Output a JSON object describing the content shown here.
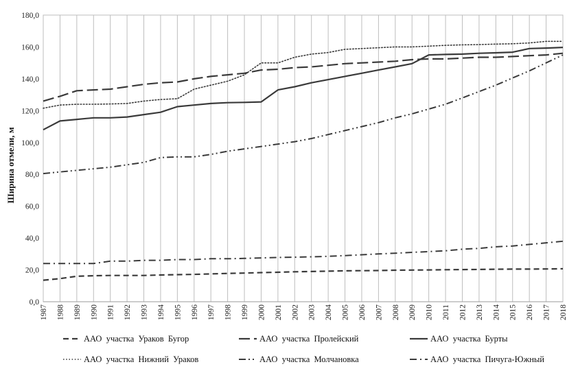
{
  "chart_data": {
    "type": "line",
    "title": "",
    "xlabel": "",
    "ylabel": "Ширина отмели, м",
    "ylim": [
      0,
      180
    ],
    "yticks": [
      "0,0",
      "20,0",
      "40,0",
      "60,0",
      "80,0",
      "100,0",
      "120,0",
      "140,0",
      "160,0",
      "180,0"
    ],
    "grid": "vertical",
    "legend": "bottom",
    "x": [
      "1987",
      "1988",
      "1989",
      "1990",
      "1991",
      "1992",
      "1993",
      "1994",
      "1995",
      "1996",
      "1997",
      "1998",
      "1999",
      "2000",
      "2001",
      "2002",
      "2003",
      "2004",
      "2005",
      "2006",
      "2007",
      "2008",
      "2009",
      "2010",
      "2011",
      "2012",
      "2013",
      "2014",
      "2015",
      "2016",
      "2017",
      "2018"
    ],
    "series": [
      {
        "name": "ААО  участка  Ураков  Бугор",
        "style": "dash",
        "values": [
          13.5,
          14.5,
          16,
          16.3,
          16.5,
          16.5,
          16.5,
          16.8,
          17,
          17.2,
          17.5,
          17.8,
          18,
          18.3,
          18.5,
          18.8,
          19,
          19.2,
          19.4,
          19.5,
          19.6,
          19.8,
          19.9,
          20,
          20.1,
          20.2,
          20.3,
          20.4,
          20.5,
          20.5,
          20.6,
          20.7
        ]
      },
      {
        "name": "ААО  участка  Пролейский",
        "style": "longdash",
        "values": [
          126,
          129,
          132.5,
          133,
          133.5,
          135,
          136.5,
          137.5,
          138,
          140,
          141.5,
          142.5,
          143.5,
          145.5,
          146,
          147,
          147.5,
          148.5,
          149.5,
          150,
          150.5,
          151,
          152,
          152.5,
          152.5,
          153,
          153.5,
          153.5,
          154,
          154.5,
          155,
          156
        ]
      },
      {
        "name": "ААО  участка  Бурты",
        "style": "solid",
        "values": [
          108,
          113.5,
          114.5,
          115.5,
          115.5,
          116,
          117.5,
          119,
          122.5,
          123.5,
          124.5,
          125,
          125.2,
          125.5,
          133,
          135,
          137.5,
          139.5,
          141.5,
          143.5,
          145.5,
          147.5,
          149.5,
          155,
          155.3,
          155.5,
          156,
          156.3,
          156.7,
          159,
          159.3,
          159.7
        ]
      },
      {
        "name": "ААО  участка  Нижний  Ураков",
        "style": "dot",
        "values": [
          121.5,
          123.5,
          124,
          124,
          124.2,
          124.5,
          126,
          127,
          127.5,
          133.5,
          136,
          138.5,
          142.5,
          150,
          150,
          153.5,
          155.5,
          156.5,
          158.5,
          159,
          159.5,
          160,
          160,
          160.5,
          161,
          161.3,
          161.5,
          161.8,
          162,
          162.5,
          163.5,
          163.5
        ]
      },
      {
        "name": "ААО  участка  Молчановка",
        "style": "dashdotdot",
        "values": [
          80.5,
          81.5,
          82.5,
          83.5,
          84.5,
          86,
          87.5,
          90.5,
          91,
          91,
          92.5,
          94.5,
          96,
          97.5,
          99,
          100.5,
          102.5,
          105,
          107.5,
          110,
          112.5,
          115.5,
          118,
          121,
          124,
          128,
          132,
          136,
          140.5,
          145,
          150,
          155
        ]
      },
      {
        "name": "ААО  участка  Пичуга-Южный",
        "style": "dashdot",
        "values": [
          24,
          24,
          24,
          24,
          25.5,
          25.5,
          26,
          26,
          26.5,
          26.5,
          27,
          27,
          27.2,
          27.5,
          27.8,
          28,
          28.2,
          28.5,
          29,
          29.5,
          30,
          30.5,
          31,
          31.5,
          32,
          33,
          33.5,
          34.5,
          35,
          36,
          37,
          38
        ]
      }
    ]
  }
}
